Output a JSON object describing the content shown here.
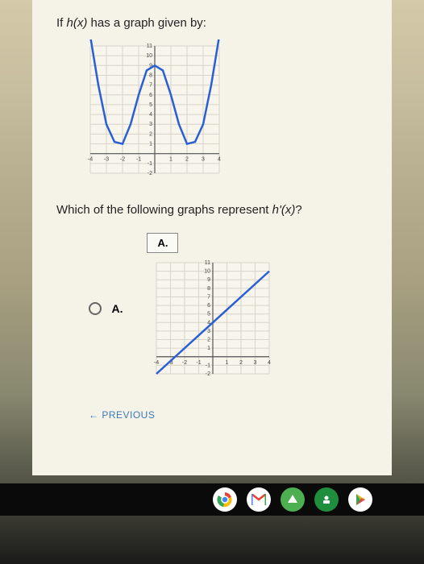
{
  "question": {
    "prefix": "If ",
    "func": "h(x)",
    "suffix": " has a graph given by:"
  },
  "chart1": {
    "type": "line",
    "xlim": [
      -4,
      4
    ],
    "ylim": [
      -2,
      11
    ],
    "xticks": [
      -4,
      -3,
      -2,
      -1,
      1,
      2,
      3,
      4
    ],
    "yticks": [
      -2,
      -1,
      1,
      2,
      3,
      4,
      5,
      6,
      7,
      8,
      9,
      10,
      11
    ],
    "curve_color": "#2a5fd4",
    "grid_color": "#d8d4c8",
    "axis_color": "#555555",
    "background": "#f7f5ec",
    "points": [
      [
        -4,
        12
      ],
      [
        -3.5,
        7
      ],
      [
        -3,
        3
      ],
      [
        -2.5,
        1.2
      ],
      [
        -2,
        1
      ],
      [
        -1.5,
        3
      ],
      [
        -1,
        6
      ],
      [
        -0.5,
        8.5
      ],
      [
        0,
        9
      ],
      [
        0.5,
        8.5
      ],
      [
        1,
        6
      ],
      [
        1.5,
        3
      ],
      [
        2,
        1
      ],
      [
        2.5,
        1.2
      ],
      [
        3,
        3
      ],
      [
        3.5,
        7
      ],
      [
        4,
        12
      ]
    ]
  },
  "subquestion": {
    "prefix": "Which of the following graphs represent ",
    "func": "h'(x)",
    "suffix": "?"
  },
  "option": {
    "label": "A.",
    "box_label": "A."
  },
  "chart2": {
    "type": "line",
    "xlim": [
      -4,
      4
    ],
    "ylim": [
      -2,
      11
    ],
    "xticks": [
      -4,
      -3,
      -2,
      -1,
      1,
      2,
      3,
      4
    ],
    "yticks": [
      -2,
      -1,
      1,
      2,
      3,
      4,
      5,
      6,
      7,
      8,
      9,
      10,
      11
    ],
    "curve_color": "#2a5fd4",
    "grid_color": "#d8d4c8",
    "axis_color": "#555555",
    "background": "#f7f5ec",
    "points": [
      [
        -4,
        -2
      ],
      [
        4,
        10
      ]
    ]
  },
  "previous": "← PREVIOUS",
  "taskbar_icons": [
    "chrome",
    "gmail",
    "drive",
    "classroom",
    "play"
  ]
}
